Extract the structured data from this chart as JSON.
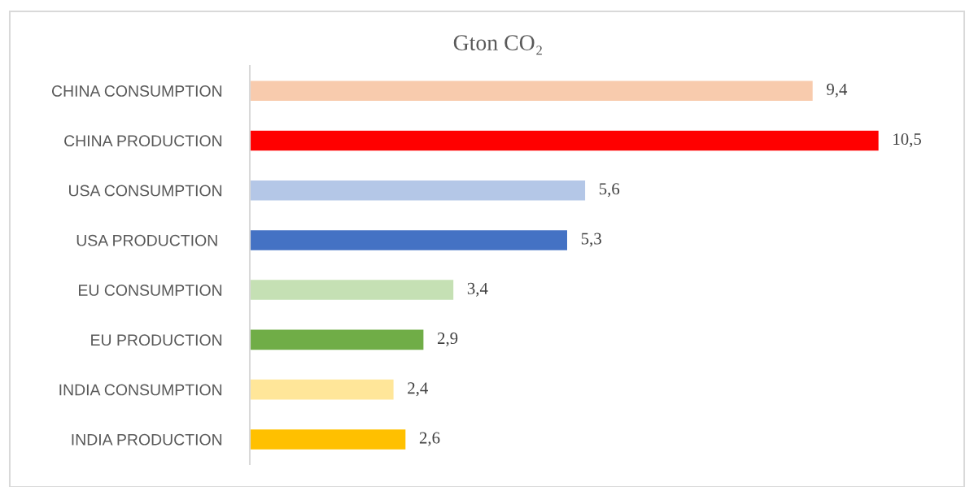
{
  "chart_data": {
    "type": "bar",
    "orientation": "horizontal",
    "title": "Gton CO₂",
    "categories": [
      "CHINA CONSUMPTION",
      "CHINA PRODUCTION",
      "USA CONSUMPTION",
      "USA PRODUCTION ",
      "EU CONSUMPTION",
      "EU PRODUCTION",
      "INDIA CONSUMPTION",
      "INDIA PRODUCTION"
    ],
    "values": [
      9.4,
      10.5,
      5.6,
      5.3,
      3.4,
      2.9,
      2.4,
      2.6
    ],
    "colors": [
      "#f8cbad",
      "#ff0000",
      "#b4c7e7",
      "#4472c4",
      "#c5e0b4",
      "#70ad47",
      "#ffe699",
      "#ffc000"
    ],
    "value_labels": [
      "9,4",
      "10,5",
      "5,6",
      "5,3",
      "3,4",
      "2,9",
      "2,4",
      "2,6"
    ],
    "xlim": [
      0,
      12
    ],
    "tick_labels": "y",
    "grid": false,
    "legend": false
  }
}
